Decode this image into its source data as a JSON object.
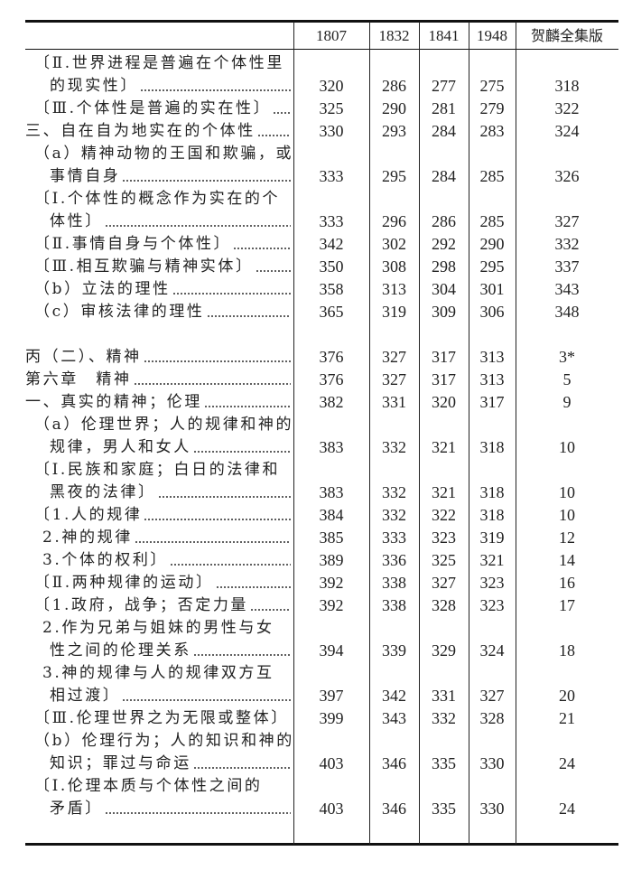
{
  "header": {
    "columns": [
      "1807",
      "1832",
      "1841",
      "1948",
      "贺麟全集版"
    ]
  },
  "rows": [
    {
      "lines": [
        "〔Ⅱ.世界进程是普遍在个体性里",
        "的现实性〕"
      ],
      "indent": 1,
      "values": [
        "320",
        "286",
        "277",
        "275",
        "318"
      ]
    },
    {
      "lines": [
        "〔Ⅲ.个体性是普遍的实在性〕"
      ],
      "indent": 1,
      "values": [
        "325",
        "290",
        "281",
        "279",
        "322"
      ]
    },
    {
      "lines": [
        "三、自在自为地实在的个体性"
      ],
      "indent": 0,
      "values": [
        "330",
        "293",
        "284",
        "283",
        "324"
      ]
    },
    {
      "lines": [
        "（a）精神动物的王国和欺骗，或",
        "事情自身"
      ],
      "indent": 1,
      "values": [
        "333",
        "295",
        "284",
        "285",
        "326"
      ]
    },
    {
      "lines": [
        "〔Ⅰ.个体性的概念作为实在的个",
        "体性〕"
      ],
      "indent": 1,
      "values": [
        "333",
        "296",
        "286",
        "285",
        "327"
      ]
    },
    {
      "lines": [
        "〔Ⅱ.事情自身与个体性〕"
      ],
      "indent": 1,
      "values": [
        "342",
        "302",
        "292",
        "290",
        "332"
      ]
    },
    {
      "lines": [
        "〔Ⅲ.相互欺骗与精神实体〕"
      ],
      "indent": 1,
      "values": [
        "350",
        "308",
        "298",
        "295",
        "337"
      ]
    },
    {
      "lines": [
        "（b）立法的理性"
      ],
      "indent": 1,
      "values": [
        "358",
        "313",
        "304",
        "301",
        "343"
      ]
    },
    {
      "lines": [
        "（c）审核法律的理性"
      ],
      "indent": 1,
      "values": [
        "365",
        "319",
        "309",
        "306",
        "348"
      ]
    },
    {
      "lines": [],
      "indent": 0,
      "values": []
    },
    {
      "lines": [
        "丙（二）、精神"
      ],
      "indent": 0,
      "values": [
        "376",
        "327",
        "317",
        "313",
        "3*"
      ]
    },
    {
      "lines": [
        "第六章　精神"
      ],
      "indent": 0,
      "values": [
        "376",
        "327",
        "317",
        "313",
        "5"
      ]
    },
    {
      "lines": [
        "一、真实的精神；伦理"
      ],
      "indent": 0,
      "values": [
        "382",
        "331",
        "320",
        "317",
        "9"
      ]
    },
    {
      "lines": [
        "（a）伦理世界；人的规律和神的",
        "规律，男人和女人"
      ],
      "indent": 1,
      "values": [
        "383",
        "332",
        "321",
        "318",
        "10"
      ]
    },
    {
      "lines": [
        "〔Ⅰ.民族和家庭；白日的法律和",
        "黑夜的法律〕"
      ],
      "indent": 1,
      "values": [
        "383",
        "332",
        "321",
        "318",
        "10"
      ]
    },
    {
      "lines": [
        "〔1.人的规律"
      ],
      "indent": 1,
      "values": [
        "384",
        "332",
        "322",
        "318",
        "10"
      ]
    },
    {
      "lines": [
        "2.神的规律"
      ],
      "indent": 2,
      "values": [
        "385",
        "333",
        "323",
        "319",
        "12"
      ]
    },
    {
      "lines": [
        "3.个体的权利〕"
      ],
      "indent": 2,
      "values": [
        "389",
        "336",
        "325",
        "321",
        "14"
      ]
    },
    {
      "lines": [
        "〔Ⅱ.两种规律的运动〕"
      ],
      "indent": 1,
      "values": [
        "392",
        "338",
        "327",
        "323",
        "16"
      ]
    },
    {
      "lines": [
        "〔1.政府，战争；否定力量"
      ],
      "indent": 1,
      "values": [
        "392",
        "338",
        "328",
        "323",
        "17"
      ]
    },
    {
      "lines": [
        "2.作为兄弟与姐妹的男性与女",
        "性之间的伦理关系"
      ],
      "indent": 2,
      "values": [
        "394",
        "339",
        "329",
        "324",
        "18"
      ]
    },
    {
      "lines": [
        "3.神的规律与人的规律双方互",
        "相过渡〕"
      ],
      "indent": 2,
      "values": [
        "397",
        "342",
        "331",
        "327",
        "20"
      ]
    },
    {
      "lines": [
        "〔Ⅲ.伦理世界之为无限或整体〕"
      ],
      "indent": 1,
      "values": [
        "399",
        "343",
        "332",
        "328",
        "21"
      ]
    },
    {
      "lines": [
        "（b）伦理行为；人的知识和神的",
        "知识；罪过与命运"
      ],
      "indent": 1,
      "values": [
        "403",
        "346",
        "335",
        "330",
        "24"
      ]
    },
    {
      "lines": [
        "〔Ⅰ.伦理本质与个体性之间的",
        "矛盾〕"
      ],
      "indent": 1,
      "values": [
        "403",
        "346",
        "335",
        "330",
        "24"
      ]
    }
  ]
}
